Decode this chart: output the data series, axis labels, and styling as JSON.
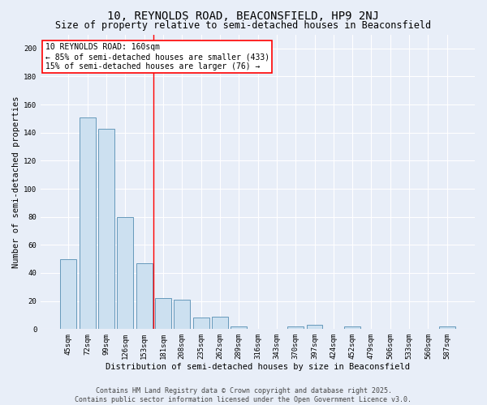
{
  "title": "10, REYNOLDS ROAD, BEACONSFIELD, HP9 2NJ",
  "subtitle": "Size of property relative to semi-detached houses in Beaconsfield",
  "xlabel": "Distribution of semi-detached houses by size in Beaconsfield",
  "ylabel": "Number of semi-detached properties",
  "categories": [
    "45sqm",
    "72sqm",
    "99sqm",
    "126sqm",
    "153sqm",
    "181sqm",
    "208sqm",
    "235sqm",
    "262sqm",
    "289sqm",
    "316sqm",
    "343sqm",
    "370sqm",
    "397sqm",
    "424sqm",
    "452sqm",
    "479sqm",
    "506sqm",
    "533sqm",
    "560sqm",
    "587sqm"
  ],
  "values": [
    50,
    151,
    143,
    80,
    47,
    22,
    21,
    8,
    9,
    2,
    0,
    0,
    2,
    3,
    0,
    2,
    0,
    0,
    0,
    0,
    2
  ],
  "bar_color": "#cce0f0",
  "bar_edge_color": "#6699bb",
  "red_line_x": 4.5,
  "annotation_title": "10 REYNOLDS ROAD: 160sqm",
  "annotation_line1": "← 85% of semi-detached houses are smaller (433)",
  "annotation_line2": "15% of semi-detached houses are larger (76) →",
  "ylim": [
    0,
    210
  ],
  "yticks": [
    0,
    20,
    40,
    60,
    80,
    100,
    120,
    140,
    160,
    180,
    200
  ],
  "footer1": "Contains HM Land Registry data © Crown copyright and database right 2025.",
  "footer2": "Contains public sector information licensed under the Open Government Licence v3.0.",
  "bg_color": "#e8eef8",
  "plot_bg_color": "#e8eef8",
  "grid_color": "#ffffff",
  "title_fontsize": 10,
  "subtitle_fontsize": 8.5,
  "axis_label_fontsize": 7.5,
  "tick_fontsize": 6.5,
  "footer_fontsize": 6,
  "annotation_fontsize": 7
}
